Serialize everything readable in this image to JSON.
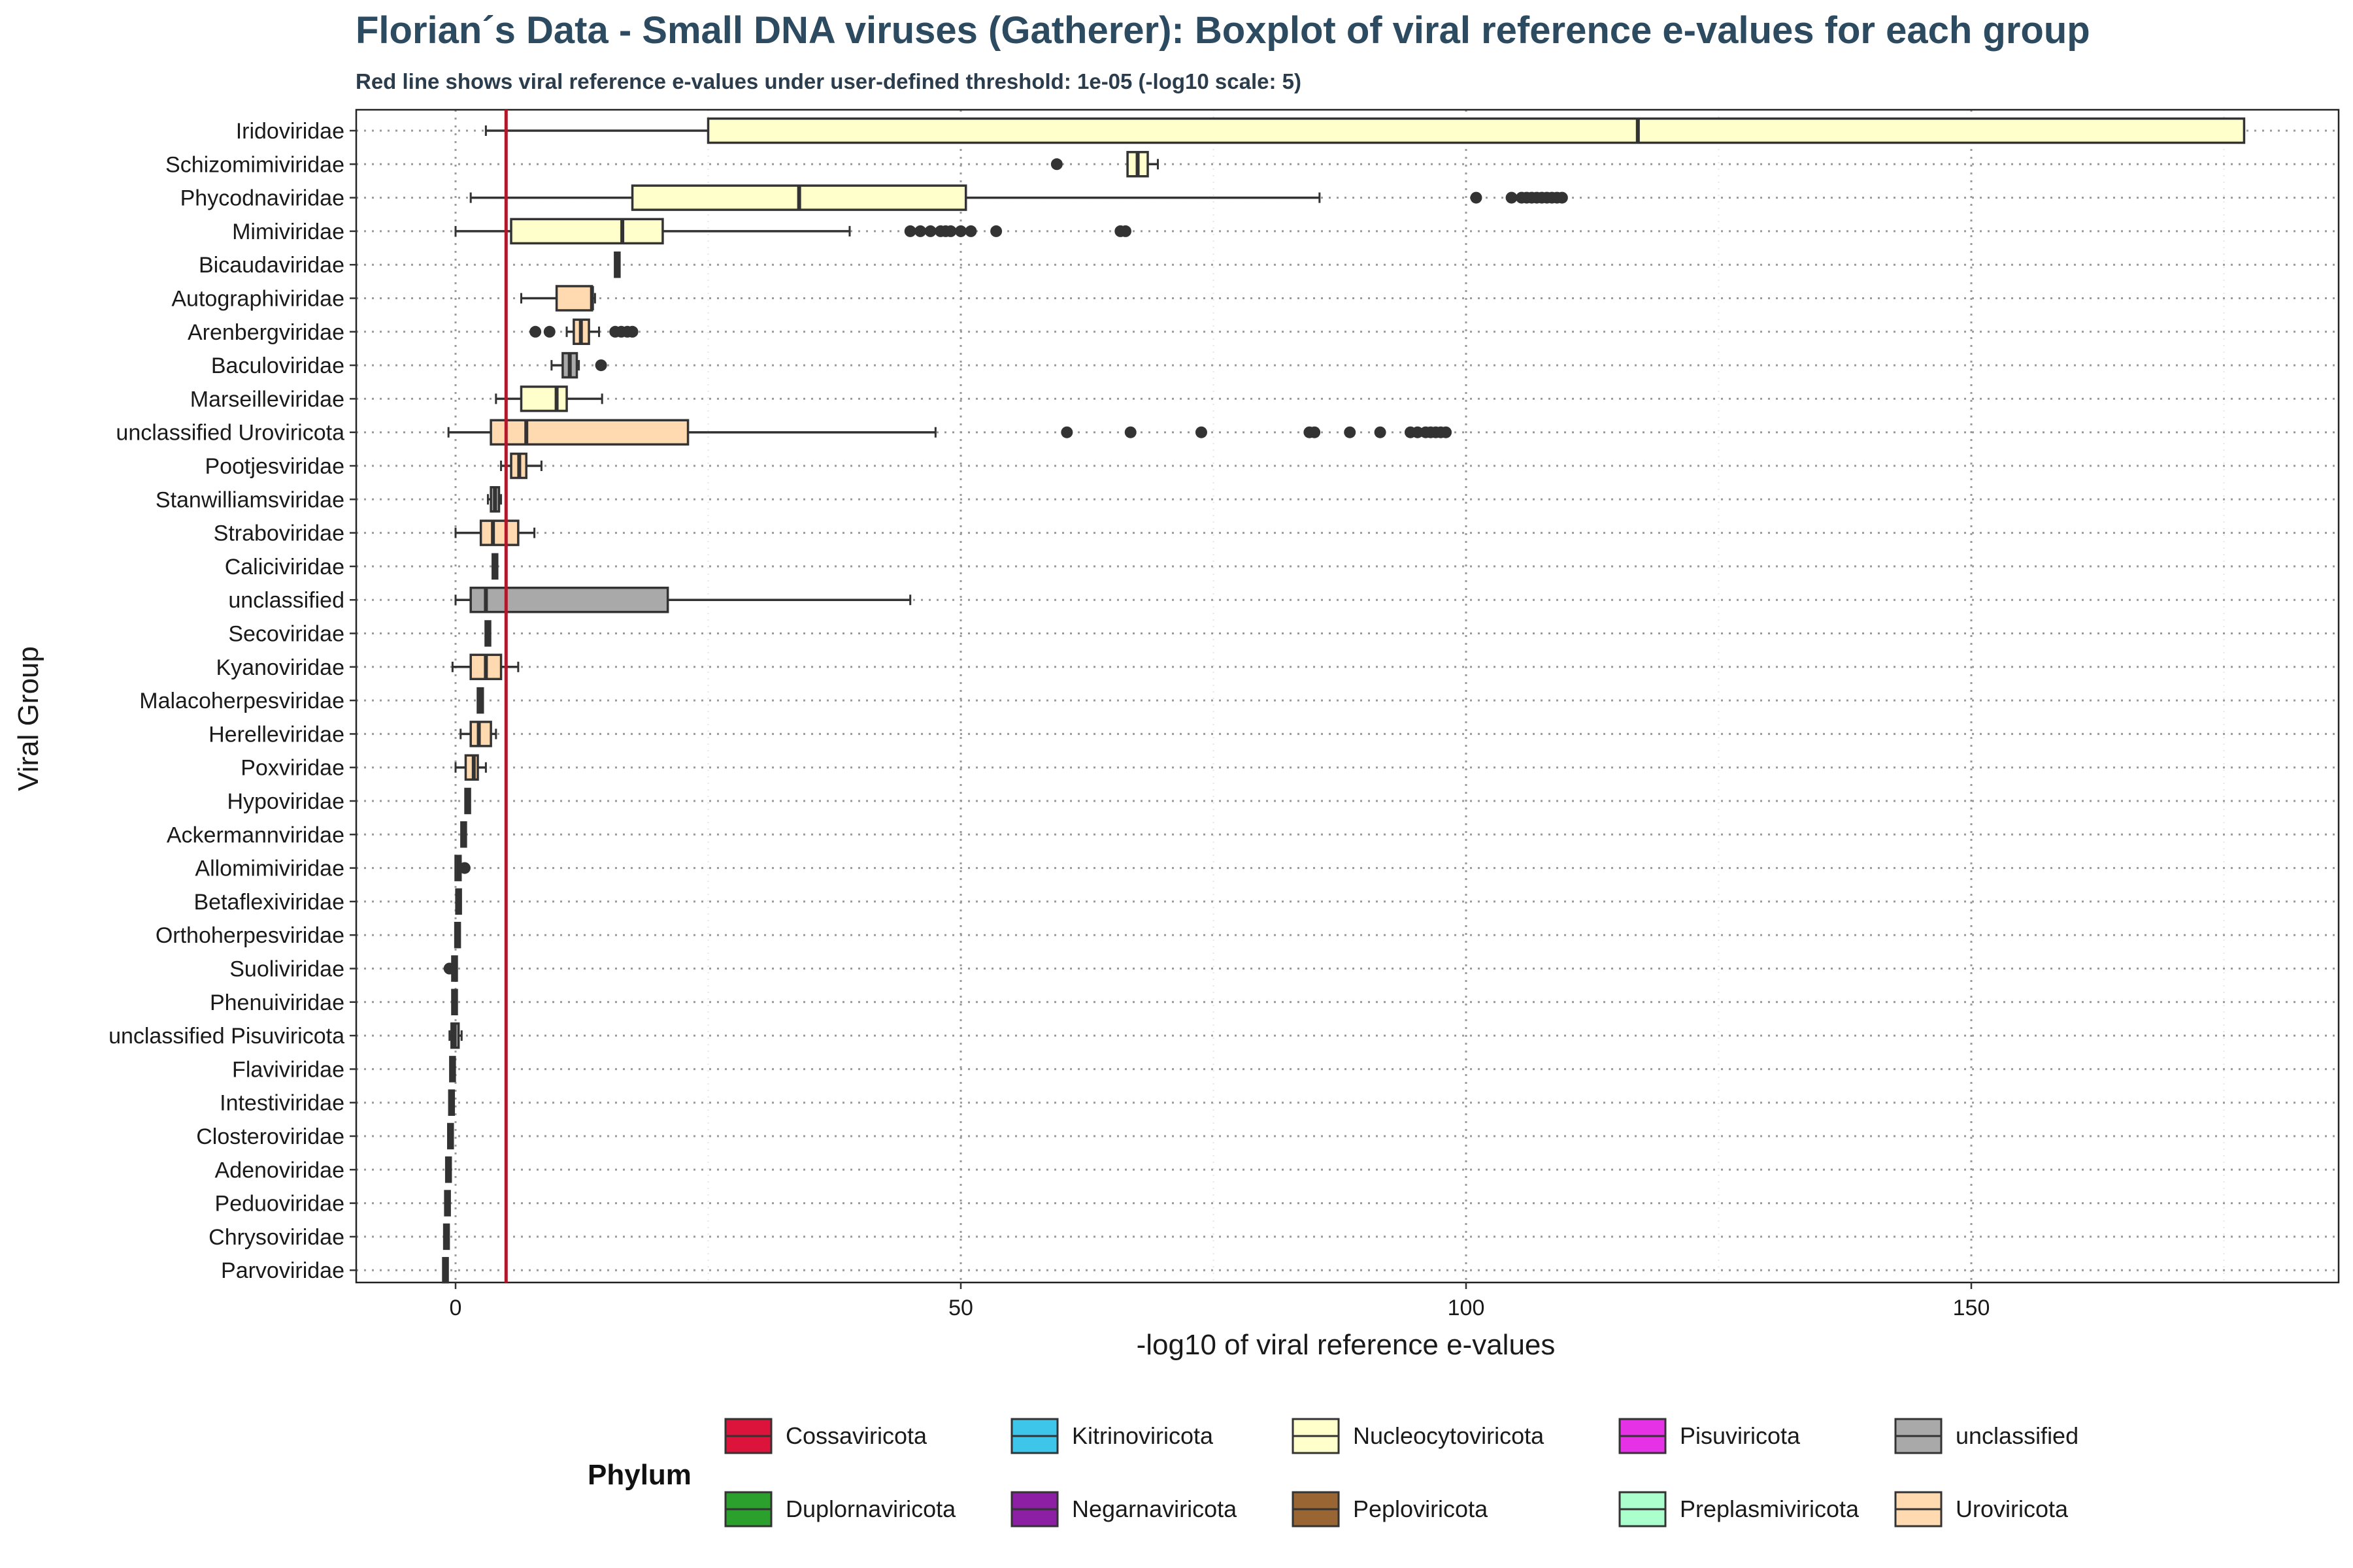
{
  "chart_data": {
    "type": "boxplot",
    "title": "Florian´s Data - Small DNA viruses (Gatherer): Boxplot of viral reference e-values for each group",
    "subtitle": "Red line shows viral reference e-values under user-defined threshold: 1e-05 (-log10 scale: 5)",
    "xlabel": "-log10 of viral reference e-values",
    "ylabel": "Viral Group",
    "xlim": [
      -9.5,
      186
    ],
    "xticks": [
      0,
      50,
      100,
      150
    ],
    "threshold": {
      "value": 5,
      "color": "#b2182b"
    },
    "legend": {
      "title": "Phylum",
      "position": "bottom",
      "items": [
        {
          "label": "Cossaviricota",
          "color": "#dc143c"
        },
        {
          "label": "Duplornaviricota",
          "color": "#2ca02c"
        },
        {
          "label": "Kitrinoviricota",
          "color": "#3ec6ea"
        },
        {
          "label": "Negarnaviricota",
          "color": "#8c1fa3"
        },
        {
          "label": "Nucleocytoviricota",
          "color": "#ffffcc"
        },
        {
          "label": "Peploviricota",
          "color": "#996633"
        },
        {
          "label": "Pisuviricota",
          "color": "#e632e6"
        },
        {
          "label": "Preplasmiviricota",
          "color": "#aaffcc"
        },
        {
          "label": "unclassified",
          "color": "#a9a9a9"
        },
        {
          "label": "Uroviricota",
          "color": "#ffdab0"
        }
      ]
    },
    "groups": [
      {
        "name": "Iridoviridae",
        "phylum": "Nucleocytoviricota",
        "whisker_low": 3,
        "q1": 25,
        "median": 117,
        "q3": 177,
        "whisker_high": 177,
        "outliers": []
      },
      {
        "name": "Schizomimiviridae",
        "phylum": "Nucleocytoviricota",
        "whisker_low": 66.5,
        "q1": 66.5,
        "median": 67.5,
        "q3": 68.5,
        "whisker_high": 69.5,
        "outliers": [
          59.5
        ]
      },
      {
        "name": "Phycodnaviridae",
        "phylum": "Nucleocytoviricota",
        "whisker_low": 1.5,
        "q1": 17.5,
        "median": 34,
        "q3": 50.5,
        "whisker_high": 85.5,
        "outliers": [
          101,
          104.5,
          105.5,
          106,
          106.5,
          107,
          107.5,
          108,
          108.5,
          109,
          109.5
        ]
      },
      {
        "name": "Mimiviridae",
        "phylum": "Nucleocytoviricota",
        "whisker_low": 0,
        "q1": 5.5,
        "median": 16.5,
        "q3": 20.5,
        "whisker_high": 39,
        "outliers": [
          45,
          46,
          47,
          48,
          48.5,
          49,
          50,
          51,
          53.5,
          65.8,
          66.3
        ]
      },
      {
        "name": "Bicaudaviridae",
        "phylum": "unclassified",
        "whisker_low": 15.8,
        "q1": 15.8,
        "median": 16,
        "q3": 16.2,
        "whisker_high": 16.2,
        "outliers": []
      },
      {
        "name": "Autographiviridae",
        "phylum": "Uroviricota",
        "whisker_low": 6.5,
        "q1": 10,
        "median": 13.5,
        "q3": 13.5,
        "whisker_high": 13.8,
        "outliers": []
      },
      {
        "name": "Arenbergviridae",
        "phylum": "Uroviricota",
        "whisker_low": 11,
        "q1": 11.7,
        "median": 12.4,
        "q3": 13.2,
        "whisker_high": 14.2,
        "outliers": [
          7.9,
          9.3,
          15.8,
          16.4,
          17,
          17.5
        ]
      },
      {
        "name": "Baculoviridae",
        "phylum": "unclassified",
        "whisker_low": 9.5,
        "q1": 10.6,
        "median": 11.3,
        "q3": 12,
        "whisker_high": 12.2,
        "outliers": [
          14.4
        ]
      },
      {
        "name": "Marseilleviridae",
        "phylum": "Nucleocytoviricota",
        "whisker_low": 4,
        "q1": 6.5,
        "median": 10,
        "q3": 11,
        "whisker_high": 14.5,
        "outliers": []
      },
      {
        "name": "unclassified Uroviricota",
        "phylum": "Uroviricota",
        "whisker_low": -0.7,
        "q1": 3.5,
        "median": 7,
        "q3": 23,
        "whisker_high": 47.5,
        "outliers": [
          60.5,
          66.8,
          73.8,
          84.5,
          85,
          88.5,
          91.5,
          94.5,
          95.2,
          96,
          96.5,
          97,
          97.5,
          98
        ]
      },
      {
        "name": "Pootjesviridae",
        "phylum": "Uroviricota",
        "whisker_low": 4.5,
        "q1": 5.5,
        "median": 6.3,
        "q3": 7,
        "whisker_high": 8.5,
        "outliers": []
      },
      {
        "name": "Stanwilliamsviridae",
        "phylum": "unclassified",
        "whisker_low": 3.2,
        "q1": 3.5,
        "median": 3.9,
        "q3": 4.3,
        "whisker_high": 4.5,
        "outliers": []
      },
      {
        "name": "Straboviridae",
        "phylum": "Uroviricota",
        "whisker_low": 0,
        "q1": 2.5,
        "median": 3.7,
        "q3": 6.2,
        "whisker_high": 7.8,
        "outliers": []
      },
      {
        "name": "Caliciviridae",
        "phylum": "unclassified",
        "whisker_low": 3.7,
        "q1": 3.7,
        "median": 3.9,
        "q3": 4.1,
        "whisker_high": 4.1,
        "outliers": []
      },
      {
        "name": "unclassified",
        "phylum": "unclassified",
        "whisker_low": 0,
        "q1": 1.5,
        "median": 3,
        "q3": 21,
        "whisker_high": 45,
        "outliers": []
      },
      {
        "name": "Secoviridae",
        "phylum": "unclassified",
        "whisker_low": 3,
        "q1": 3,
        "median": 3.2,
        "q3": 3.4,
        "whisker_high": 3.4,
        "outliers": []
      },
      {
        "name": "Kyanoviridae",
        "phylum": "Uroviricota",
        "whisker_low": -0.3,
        "q1": 1.5,
        "median": 3,
        "q3": 4.5,
        "whisker_high": 6.2,
        "outliers": []
      },
      {
        "name": "Malacoherpesviridae",
        "phylum": "unclassified",
        "whisker_low": 2.2,
        "q1": 2.2,
        "median": 2.5,
        "q3": 2.7,
        "whisker_high": 2.7,
        "outliers": []
      },
      {
        "name": "Herelleviridae",
        "phylum": "Uroviricota",
        "whisker_low": 0.5,
        "q1": 1.5,
        "median": 2.3,
        "q3": 3.5,
        "whisker_high": 4,
        "outliers": []
      },
      {
        "name": "Poxviridae",
        "phylum": "Uroviricota",
        "whisker_low": 0,
        "q1": 1,
        "median": 1.8,
        "q3": 2.2,
        "whisker_high": 3,
        "outliers": []
      },
      {
        "name": "Hypoviridae",
        "phylum": "unclassified",
        "whisker_low": 1,
        "q1": 1,
        "median": 1.2,
        "q3": 1.4,
        "whisker_high": 1.4,
        "outliers": []
      },
      {
        "name": "Ackermannviridae",
        "phylum": "unclassified",
        "whisker_low": 0.6,
        "q1": 0.6,
        "median": 0.8,
        "q3": 1,
        "whisker_high": 1,
        "outliers": []
      },
      {
        "name": "Allomimiviridae",
        "phylum": "unclassified",
        "whisker_low": 0,
        "q1": 0,
        "median": 0.3,
        "q3": 0.5,
        "whisker_high": 0.5,
        "outliers": [
          0.9
        ]
      },
      {
        "name": "Betaflexiviridae",
        "phylum": "unclassified",
        "whisker_low": 0.1,
        "q1": 0.1,
        "median": 0.3,
        "q3": 0.5,
        "whisker_high": 0.5,
        "outliers": []
      },
      {
        "name": "Orthoherpesviridae",
        "phylum": "unclassified",
        "whisker_low": 0,
        "q1": 0,
        "median": 0.2,
        "q3": 0.4,
        "whisker_high": 0.4,
        "outliers": []
      },
      {
        "name": "Suoliviridae",
        "phylum": "unclassified",
        "whisker_low": -0.3,
        "q1": -0.3,
        "median": -0.1,
        "q3": 0.1,
        "whisker_high": 0.1,
        "outliers": [
          -0.6
        ]
      },
      {
        "name": "Phenuiviridae",
        "phylum": "unclassified",
        "whisker_low": -0.3,
        "q1": -0.3,
        "median": -0.1,
        "q3": 0.1,
        "whisker_high": 0.1,
        "outliers": []
      },
      {
        "name": "unclassified Pisuviricota",
        "phylum": "unclassified",
        "whisker_low": -0.6,
        "q1": -0.4,
        "median": -0.1,
        "q3": 0.3,
        "whisker_high": 0.6,
        "outliers": []
      },
      {
        "name": "Flaviviridae",
        "phylum": "unclassified",
        "whisker_low": -0.5,
        "q1": -0.5,
        "median": -0.3,
        "q3": -0.1,
        "whisker_high": -0.1,
        "outliers": []
      },
      {
        "name": "Intestiviridae",
        "phylum": "unclassified",
        "whisker_low": -0.6,
        "q1": -0.6,
        "median": -0.4,
        "q3": -0.2,
        "whisker_high": -0.2,
        "outliers": []
      },
      {
        "name": "Closteroviridae",
        "phylum": "unclassified",
        "whisker_low": -0.7,
        "q1": -0.7,
        "median": -0.5,
        "q3": -0.3,
        "whisker_high": -0.3,
        "outliers": []
      },
      {
        "name": "Adenoviridae",
        "phylum": "unclassified",
        "whisker_low": -0.9,
        "q1": -0.9,
        "median": -0.7,
        "q3": -0.5,
        "whisker_high": -0.5,
        "outliers": []
      },
      {
        "name": "Peduoviridae",
        "phylum": "unclassified",
        "whisker_low": -1,
        "q1": -1,
        "median": -0.8,
        "q3": -0.6,
        "whisker_high": -0.6,
        "outliers": []
      },
      {
        "name": "Chrysoviridae",
        "phylum": "unclassified",
        "whisker_low": -1.1,
        "q1": -1.1,
        "median": -0.9,
        "q3": -0.7,
        "whisker_high": -0.7,
        "outliers": []
      },
      {
        "name": "Parvoviridae",
        "phylum": "unclassified",
        "whisker_low": -1.2,
        "q1": -1.2,
        "median": -1,
        "q3": -0.8,
        "whisker_high": -0.8,
        "outliers": []
      }
    ]
  }
}
